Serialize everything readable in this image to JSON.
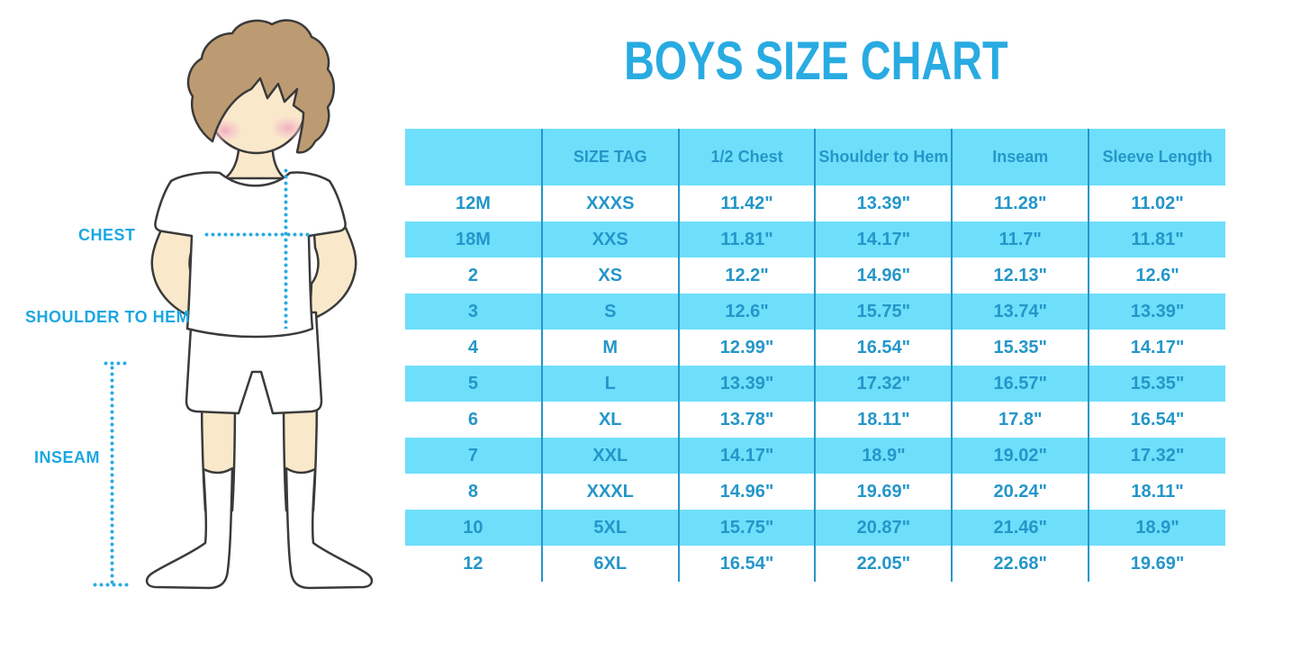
{
  "title": "BOYS SIZE CHART",
  "figure": {
    "illustration": "cartoon boy in white t-shirt, shorts and knee socks with hands on hips",
    "labels": {
      "chest": "CHEST",
      "shoulder_to_hem": "SHOULDER TO HEM",
      "inseam": "INSEAM"
    }
  },
  "colors": {
    "background": "#FFFFFF",
    "title_blue": "#29ABE2",
    "label_blue": "#1BA7E2",
    "table_text_blue": "#2496C9",
    "table_divider_blue": "#2496C9",
    "row_stripe_blue": "#6EDFFA",
    "dotted_line_blue": "#29ABE2",
    "hair_brown": "#BD9B72",
    "skin": "#FAE8CB",
    "cheek_pink": "#F0A2B9",
    "outline": "#3A3A3A"
  },
  "chart_data": {
    "type": "table",
    "title": "BOYS SIZE CHART",
    "columns": [
      "",
      "SIZE TAG",
      "1/2 Chest",
      "Shoulder to Hem",
      "Inseam",
      "Sleeve Length"
    ],
    "rows": [
      [
        "12M",
        "XXXS",
        "11.42\"",
        "13.39\"",
        "11.28\"",
        "11.02\""
      ],
      [
        "18M",
        "XXS",
        "11.81\"",
        "14.17\"",
        "11.7\"",
        "11.81\""
      ],
      [
        "2",
        "XS",
        "12.2\"",
        "14.96\"",
        "12.13\"",
        "12.6\""
      ],
      [
        "3",
        "S",
        "12.6\"",
        "15.75\"",
        "13.74\"",
        "13.39\""
      ],
      [
        "4",
        "M",
        "12.99\"",
        "16.54\"",
        "15.35\"",
        "14.17\""
      ],
      [
        "5",
        "L",
        "13.39\"",
        "17.32\"",
        "16.57\"",
        "15.35\""
      ],
      [
        "6",
        "XL",
        "13.78\"",
        "18.11\"",
        "17.8\"",
        "16.54\""
      ],
      [
        "7",
        "XXL",
        "14.17\"",
        "18.9\"",
        "19.02\"",
        "17.32\""
      ],
      [
        "8",
        "XXXL",
        "14.96\"",
        "19.69\"",
        "20.24\"",
        "18.11\""
      ],
      [
        "10",
        "5XL",
        "15.75\"",
        "20.87\"",
        "21.46\"",
        "18.9\""
      ],
      [
        "12",
        "6XL",
        "16.54\"",
        "22.05\"",
        "22.68\"",
        "19.69\""
      ]
    ],
    "layout": {
      "header_background": "#6EDFFA",
      "stripe_pattern": "header light blue, then data rows alternate white / light blue starting with white",
      "grid": "vertical column dividers only, no outer border"
    }
  }
}
